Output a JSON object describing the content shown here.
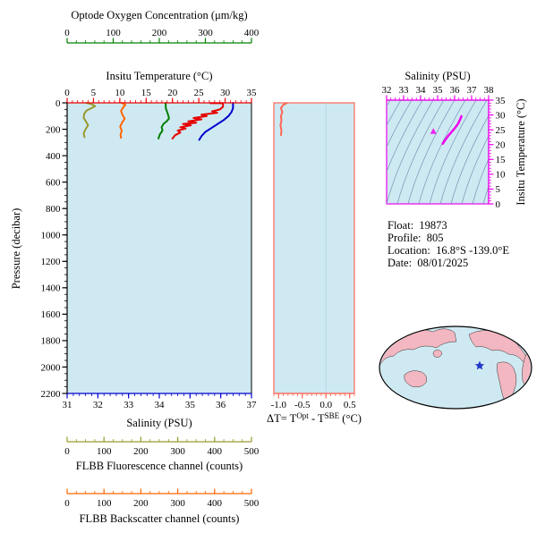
{
  "colors": {
    "oxygen": "#008000",
    "temperature": "#e60000",
    "salinity": "#0000cc",
    "fluorescence": "#99992e",
    "backscatter": "#ff6600",
    "delta": "#ff6655",
    "ts": "#ee00ee",
    "pressure": "#000000",
    "panel_bg": "#cfe9f2",
    "contour": "#7293b5",
    "ocean": "#cfe9f2",
    "land": "#f2b7c1",
    "star": "#2438c8",
    "zero_line": "#aed2e2"
  },
  "info": {
    "lines": [
      "Float:  19873",
      "Profile:  805",
      "Location:  16.8°S -139.0°E",
      "Date:  08/01/2025"
    ]
  },
  "chart_data": {
    "type": "line",
    "panels": [
      {
        "id": "main-profiles",
        "y_axis": {
          "label": "Pressure (decibar)",
          "range": [
            0,
            2200
          ],
          "ticks": [
            0,
            200,
            400,
            600,
            800,
            1000,
            1200,
            1400,
            1600,
            1800,
            2000,
            2200
          ],
          "minor": 50
        },
        "x_axes": [
          {
            "id": "oxygen",
            "label": "Optode Oxygen Concentration (μm/kg)",
            "range": [
              0,
              400
            ],
            "ticks": [
              0,
              100,
              200,
              300,
              400
            ],
            "minor": 20
          },
          {
            "id": "temperature",
            "label": "Insitu Temperature (°C)",
            "range": [
              0,
              35
            ],
            "ticks": [
              0,
              5,
              10,
              15,
              20,
              25,
              30,
              35
            ],
            "minor": 1
          },
          {
            "id": "salinity",
            "label": "Salinity (PSU)",
            "range": [
              31,
              37
            ],
            "ticks": [
              31,
              32,
              33,
              34,
              35,
              36,
              37
            ],
            "minor": 0.2
          },
          {
            "id": "fluorescence",
            "label": "FLBB Fluorescence channel (counts)",
            "range": [
              0,
              500
            ],
            "ticks": [
              0,
              100,
              200,
              300,
              400,
              500
            ],
            "minor": 25
          },
          {
            "id": "backscatter",
            "label": "FLBB Backscatter channel (counts)",
            "range": [
              0,
              500
            ],
            "ticks": [
              0,
              100,
              200,
              300,
              400,
              500
            ],
            "minor": 25
          }
        ],
        "series": [
          {
            "axis": "fluorescence",
            "points": [
              [
                52,
                0
              ],
              [
                68,
                12
              ],
              [
                76,
                25
              ],
              [
                66,
                40
              ],
              [
                52,
                60
              ],
              [
                46,
                85
              ],
              [
                45,
                115
              ],
              [
                52,
                145
              ],
              [
                57,
                170
              ],
              [
                50,
                200
              ],
              [
                45,
                230
              ],
              [
                47,
                260
              ]
            ]
          },
          {
            "axis": "backscatter",
            "points": [
              [
                148,
                0
              ],
              [
                158,
                15
              ],
              [
                152,
                35
              ],
              [
                146,
                60
              ],
              [
                150,
                90
              ],
              [
                156,
                120
              ],
              [
                149,
                150
              ],
              [
                144,
                180
              ],
              [
                148,
                210
              ],
              [
                145,
                240
              ],
              [
                146,
                265
              ]
            ]
          },
          {
            "axis": "oxygen",
            "points": [
              [
                214,
                0
              ],
              [
                214,
                40
              ],
              [
                217,
                70
              ],
              [
                220,
                100
              ],
              [
                221,
                120
              ],
              [
                216,
                140
              ],
              [
                209,
                160
              ],
              [
                205,
                185
              ],
              [
                207,
                210
              ],
              [
                201,
                240
              ],
              [
                198,
                270
              ]
            ]
          },
          {
            "axis": "temperature",
            "points": [
              [
                27.2,
                3
              ],
              [
                29.6,
                3
              ],
              [
                29.6,
                30
              ],
              [
                29.0,
                50
              ],
              [
                27.5,
                65
              ],
              [
                28.5,
                75
              ],
              [
                25.5,
                90
              ],
              [
                26.5,
                100
              ],
              [
                24.0,
                115
              ],
              [
                25.5,
                125
              ],
              [
                23.0,
                140
              ],
              [
                24.5,
                150
              ],
              [
                22.0,
                160
              ],
              [
                23.5,
                170
              ],
              [
                21.5,
                185
              ],
              [
                22.5,
                195
              ],
              [
                21.0,
                210
              ],
              [
                21.5,
                225
              ],
              [
                20.5,
                245
              ],
              [
                20.0,
                270
              ]
            ]
          },
          {
            "axis": "salinity",
            "points": [
              [
                36.4,
                0
              ],
              [
                36.4,
                40
              ],
              [
                36.35,
                70
              ],
              [
                36.25,
                100
              ],
              [
                36.1,
                130
              ],
              [
                35.9,
                160
              ],
              [
                35.7,
                190
              ],
              [
                35.5,
                220
              ],
              [
                35.38,
                250
              ],
              [
                35.3,
                280
              ]
            ]
          }
        ]
      },
      {
        "id": "delta-t",
        "x_axis": {
          "label": "ΔT= T^Opt - T^SBE (°C)",
          "label_parts": {
            "p1": "ΔT= T",
            "sup1": "Opt",
            "p2": " - T",
            "sup2": "SBE",
            "p3": " (°C)"
          },
          "range": [
            -1.1,
            0.6
          ],
          "ticks": [
            -1.0,
            -0.5,
            0.0,
            0.5
          ],
          "tick_labels": [
            "-1.0",
            "-0.5",
            "0.0",
            "0.5"
          ],
          "minor": 0.1
        },
        "series": [
          {
            "axis": "delta",
            "points": [
              [
                -0.82,
                0
              ],
              [
                -0.9,
                15
              ],
              [
                -0.95,
                40
              ],
              [
                -0.92,
                70
              ],
              [
                -0.95,
                100
              ],
              [
                -0.94,
                135
              ],
              [
                -0.96,
                170
              ],
              [
                -0.94,
                210
              ],
              [
                -0.95,
                250
              ]
            ]
          }
        ]
      },
      {
        "id": "ts-diagram",
        "type": "scatter",
        "x_axis": {
          "label": "Salinity (PSU)",
          "range": [
            32,
            38
          ],
          "ticks": [
            32,
            33,
            34,
            35,
            36,
            37,
            38
          ],
          "minor": 0.25
        },
        "y_axis": {
          "label": "Insitu Temperature (°C)",
          "range": [
            0,
            35
          ],
          "ticks": [
            0,
            5,
            10,
            15,
            20,
            25,
            30,
            35
          ],
          "minor": 1
        },
        "points": [
          [
            36.4,
            29.6
          ],
          [
            36.38,
            29.2
          ],
          [
            36.3,
            28.2
          ],
          [
            36.2,
            27.0
          ],
          [
            36.05,
            25.8
          ],
          [
            35.9,
            24.8
          ],
          [
            35.75,
            23.8
          ],
          [
            35.6,
            22.8
          ],
          [
            35.48,
            21.8
          ],
          [
            35.38,
            21.0
          ],
          [
            35.3,
            20.3
          ]
        ],
        "marker": [
          34.75,
          24.5
        ]
      }
    ]
  }
}
